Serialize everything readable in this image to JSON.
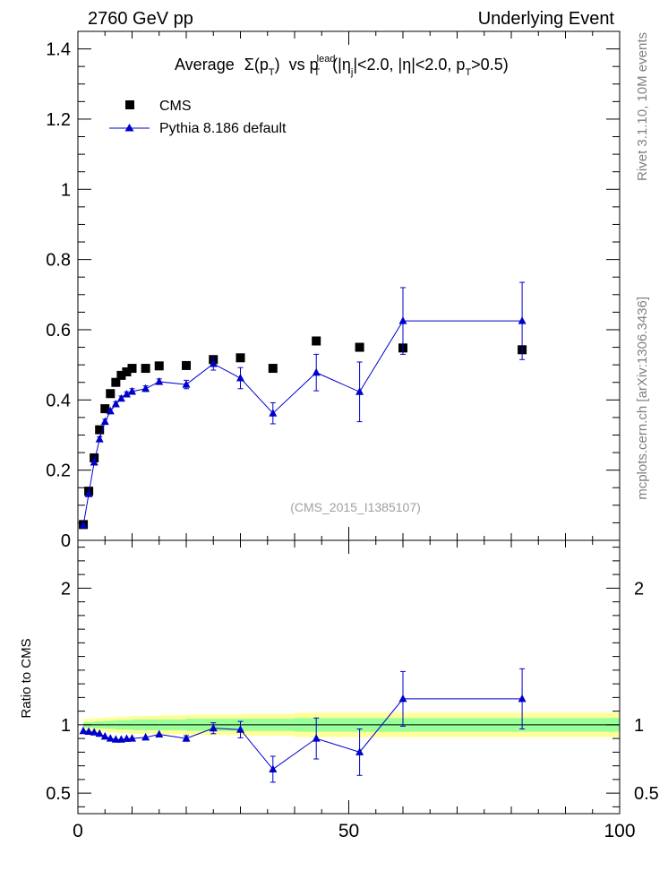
{
  "header": {
    "left": "2760 GeV pp",
    "right": "Underlying Event"
  },
  "side_labels": {
    "rivet": "Rivet 3.1.10, 10M events",
    "mcplots": "mcplots.cern.ch [arXiv:1306.3436]"
  },
  "watermark": "(CMS_2015_I1385107)",
  "chart_data": [
    {
      "type": "scatter",
      "panel": "main",
      "title": "Average Σ(pT) vs pT^lead (|ηj|<2.0, |η|<2.0, pT>0.5)",
      "title_parts": {
        "prefix": "Average",
        "sigma": "Σ(p",
        "t_sub": "T",
        "close": ")",
        "vs": "vs p",
        "lead_sup": "lead",
        "eta_open": "(|η",
        "j_sub": "j",
        "eta_rest": "|<2.0, |η|<2.0, p",
        "pt_cut": ">0.5)"
      },
      "xlabel": "",
      "ylabel": "",
      "xlim": [
        0,
        100
      ],
      "ylim": [
        0,
        1.45
      ],
      "yticks": [
        0,
        0.2,
        0.4,
        0.6,
        0.8,
        1,
        1.2,
        1.4
      ],
      "ytick_labels": [
        "0",
        "0.2",
        "0.4",
        "0.6",
        "0.8",
        "1",
        "1.2",
        "1.4"
      ],
      "legend": {
        "placement": "top-left"
      },
      "series": [
        {
          "name": "CMS",
          "style": "black-squares",
          "color": "#000000",
          "x": [
            1.0,
            2.0,
            3.0,
            4.0,
            5.0,
            6.0,
            7.0,
            8.0,
            9.0,
            10.0,
            12.5,
            15.0,
            20.0,
            25.0,
            30.0,
            36.0,
            44.0,
            52.0,
            60.0,
            82.0
          ],
          "y": [
            0.045,
            0.14,
            0.235,
            0.315,
            0.375,
            0.418,
            0.45,
            0.47,
            0.48,
            0.49,
            0.49,
            0.497,
            0.498,
            0.515,
            0.52,
            0.49,
            0.568,
            0.55,
            0.548,
            0.543
          ]
        },
        {
          "name": "Pythia 8.186 default",
          "style": "blue-triangles-line",
          "color": "#0000cc",
          "x": [
            1.0,
            2.0,
            3.0,
            4.0,
            5.0,
            6.0,
            7.0,
            8.0,
            9.0,
            10.0,
            12.5,
            15.0,
            20.0,
            25.0,
            30.0,
            36.0,
            44.0,
            52.0,
            60.0,
            82.0
          ],
          "y": [
            0.043,
            0.132,
            0.222,
            0.288,
            0.338,
            0.368,
            0.388,
            0.404,
            0.416,
            0.424,
            0.432,
            0.452,
            0.444,
            0.503,
            0.462,
            0.362,
            0.478,
            0.423,
            0.625,
            0.625
          ],
          "yerr": [
            0.003,
            0.005,
            0.006,
            0.007,
            0.007,
            0.007,
            0.007,
            0.007,
            0.007,
            0.008,
            0.008,
            0.008,
            0.012,
            0.018,
            0.03,
            0.03,
            0.052,
            0.085,
            0.095,
            0.11
          ]
        }
      ]
    },
    {
      "type": "line",
      "panel": "ratio",
      "ylabel": "Ratio to CMS",
      "xlim": [
        0,
        100
      ],
      "ylim": [
        0.35,
        2.35
      ],
      "yticks": [
        0.5,
        1,
        2
      ],
      "ytick_labels": [
        "0.5",
        "1",
        "2"
      ],
      "xticks": [
        0,
        50,
        100
      ],
      "xtick_labels": [
        "0",
        "50",
        "100"
      ],
      "bands": {
        "yellow_color": "#ffff99",
        "green_color": "#99ff99",
        "edges": [
          1,
          3,
          5,
          7,
          10,
          15,
          20,
          30,
          40,
          100
        ],
        "yellow_half": [
          0.045,
          0.05,
          0.055,
          0.06,
          0.065,
          0.07,
          0.075,
          0.08,
          0.09
        ],
        "green_half": [
          0.02,
          0.025,
          0.03,
          0.035,
          0.04,
          0.04,
          0.045,
          0.045,
          0.05
        ]
      },
      "series": [
        {
          "name": "Pythia 8.186 default",
          "color": "#0000cc",
          "x": [
            1.0,
            2.0,
            3.0,
            4.0,
            5.0,
            6.0,
            7.0,
            8.0,
            9.0,
            10.0,
            12.5,
            15.0,
            20.0,
            25.0,
            30.0,
            36.0,
            44.0,
            52.0,
            60.0,
            82.0
          ],
          "y": [
            0.955,
            0.95,
            0.945,
            0.935,
            0.915,
            0.9,
            0.893,
            0.893,
            0.898,
            0.9,
            0.908,
            0.93,
            0.9,
            0.975,
            0.965,
            0.675,
            0.9,
            0.8,
            1.19,
            1.19
          ],
          "yerr": [
            0.005,
            0.006,
            0.006,
            0.007,
            0.007,
            0.007,
            0.008,
            0.008,
            0.008,
            0.009,
            0.01,
            0.012,
            0.02,
            0.04,
            0.06,
            0.095,
            0.15,
            0.17,
            0.2,
            0.22
          ]
        }
      ]
    }
  ]
}
